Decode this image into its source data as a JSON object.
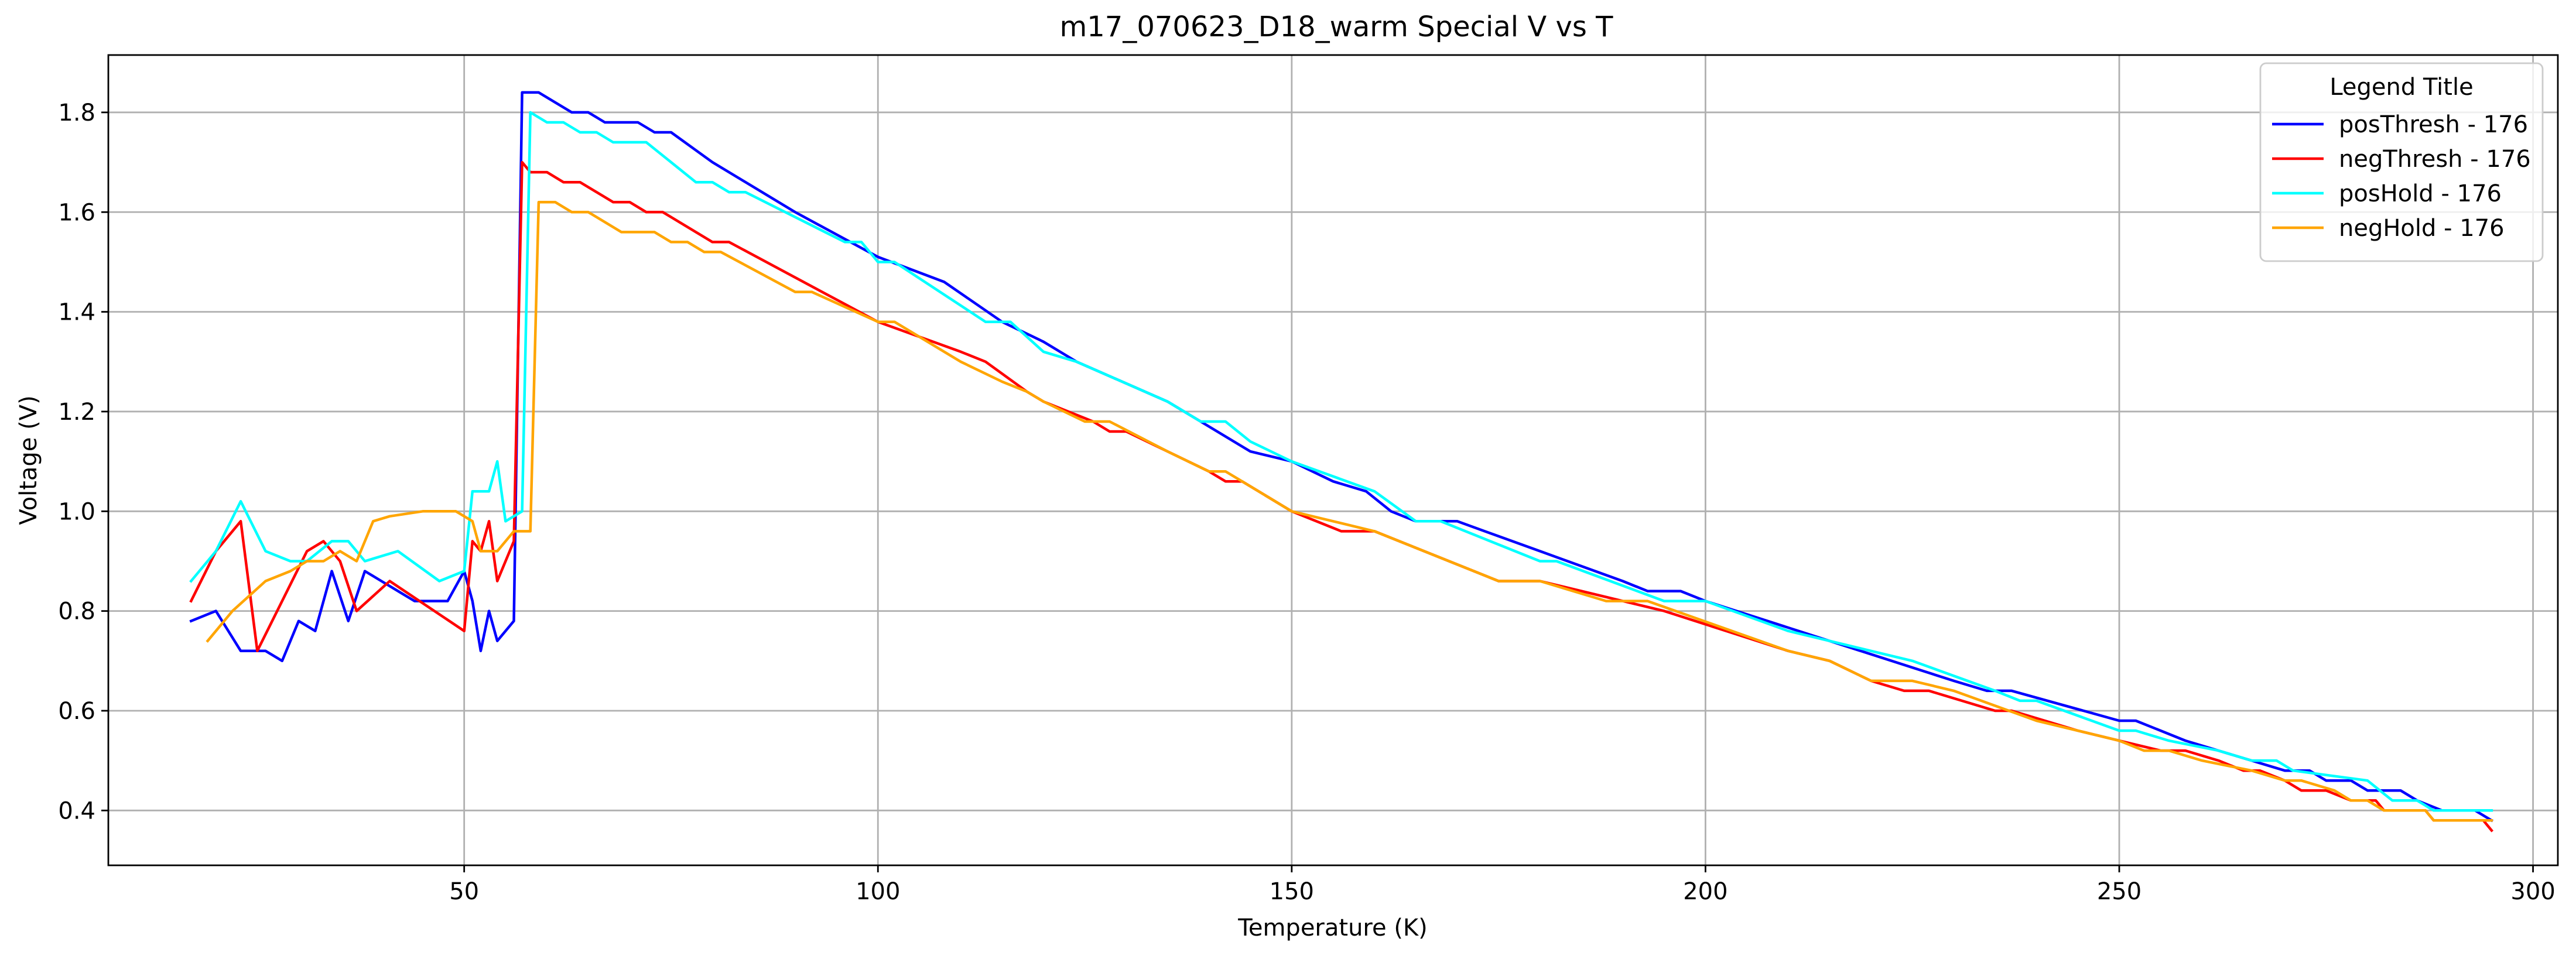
{
  "chart_data": {
    "type": "line",
    "title": "m17_070623_D18_warm Special V vs T",
    "xlabel": "Temperature (K)",
    "ylabel": "Voltage (V)",
    "xlim": [
      7,
      303
    ],
    "ylim": [
      0.29,
      1.915
    ],
    "xticks": [
      50,
      100,
      150,
      200,
      250,
      300
    ],
    "yticks": [
      0.4,
      0.6,
      0.8,
      1.0,
      1.2,
      1.4,
      1.6,
      1.8
    ],
    "grid": true,
    "legend": {
      "title": "Legend Title",
      "position": "top-right",
      "entries": [
        "posThresh - 176",
        "negThresh - 176",
        "posHold - 176",
        "negHold - 176"
      ]
    },
    "series": [
      {
        "name": "posThresh - 176",
        "color": "#0000ff",
        "points": [
          [
            17,
            0.78
          ],
          [
            20,
            0.8
          ],
          [
            23,
            0.72
          ],
          [
            26,
            0.72
          ],
          [
            28,
            0.7
          ],
          [
            30,
            0.78
          ],
          [
            32,
            0.76
          ],
          [
            34,
            0.88
          ],
          [
            36,
            0.78
          ],
          [
            38,
            0.88
          ],
          [
            40,
            0.86
          ],
          [
            42,
            0.84
          ],
          [
            44,
            0.82
          ],
          [
            46,
            0.82
          ],
          [
            48,
            0.82
          ],
          [
            50,
            0.88
          ],
          [
            51,
            0.82
          ],
          [
            52,
            0.72
          ],
          [
            53,
            0.8
          ],
          [
            54,
            0.74
          ],
          [
            56,
            0.78
          ],
          [
            57,
            1.84
          ],
          [
            59,
            1.84
          ],
          [
            61,
            1.82
          ],
          [
            63,
            1.8
          ],
          [
            65,
            1.8
          ],
          [
            67,
            1.78
          ],
          [
            71,
            1.78
          ],
          [
            73,
            1.76
          ],
          [
            75,
            1.76
          ],
          [
            80,
            1.7
          ],
          [
            90,
            1.6
          ],
          [
            100,
            1.51
          ],
          [
            108,
            1.46
          ],
          [
            115,
            1.38
          ],
          [
            120,
            1.34
          ],
          [
            124,
            1.3
          ],
          [
            135,
            1.22
          ],
          [
            145,
            1.12
          ],
          [
            150,
            1.1
          ],
          [
            155,
            1.06
          ],
          [
            159,
            1.04
          ],
          [
            162,
            1.0
          ],
          [
            165,
            0.98
          ],
          [
            170,
            0.98
          ],
          [
            175,
            0.95
          ],
          [
            180,
            0.92
          ],
          [
            190,
            0.86
          ],
          [
            193,
            0.84
          ],
          [
            197,
            0.84
          ],
          [
            200,
            0.82
          ],
          [
            230,
            0.66
          ],
          [
            234,
            0.64
          ],
          [
            237,
            0.64
          ],
          [
            250,
            0.58
          ],
          [
            252,
            0.58
          ],
          [
            258,
            0.54
          ],
          [
            262,
            0.52
          ],
          [
            270,
            0.48
          ],
          [
            273,
            0.48
          ],
          [
            275,
            0.46
          ],
          [
            278,
            0.46
          ],
          [
            280,
            0.44
          ],
          [
            284,
            0.44
          ],
          [
            286,
            0.42
          ],
          [
            289,
            0.4
          ],
          [
            293,
            0.4
          ],
          [
            295,
            0.38
          ]
        ]
      },
      {
        "name": "negThresh - 176",
        "color": "#ff0000",
        "points": [
          [
            17,
            0.82
          ],
          [
            20,
            0.92
          ],
          [
            23,
            0.98
          ],
          [
            25,
            0.72
          ],
          [
            31,
            0.92
          ],
          [
            33,
            0.94
          ],
          [
            35,
            0.9
          ],
          [
            37,
            0.8
          ],
          [
            41,
            0.86
          ],
          [
            50,
            0.76
          ],
          [
            51,
            0.94
          ],
          [
            52,
            0.92
          ],
          [
            53,
            0.98
          ],
          [
            54,
            0.86
          ],
          [
            56,
            0.94
          ],
          [
            57,
            1.7
          ],
          [
            58,
            1.68
          ],
          [
            60,
            1.68
          ],
          [
            62,
            1.66
          ],
          [
            64,
            1.66
          ],
          [
            68,
            1.62
          ],
          [
            70,
            1.62
          ],
          [
            72,
            1.6
          ],
          [
            74,
            1.6
          ],
          [
            80,
            1.54
          ],
          [
            82,
            1.54
          ],
          [
            100,
            1.38
          ],
          [
            110,
            1.32
          ],
          [
            113,
            1.3
          ],
          [
            118,
            1.24
          ],
          [
            120,
            1.22
          ],
          [
            126,
            1.18
          ],
          [
            128,
            1.16
          ],
          [
            130,
            1.16
          ],
          [
            135,
            1.12
          ],
          [
            140,
            1.08
          ],
          [
            142,
            1.06
          ],
          [
            144,
            1.06
          ],
          [
            150,
            1.0
          ],
          [
            156,
            0.96
          ],
          [
            160,
            0.96
          ],
          [
            175,
            0.86
          ],
          [
            180,
            0.86
          ],
          [
            195,
            0.8
          ],
          [
            210,
            0.72
          ],
          [
            215,
            0.7
          ],
          [
            220,
            0.66
          ],
          [
            224,
            0.64
          ],
          [
            227,
            0.64
          ],
          [
            235,
            0.6
          ],
          [
            237,
            0.6
          ],
          [
            245,
            0.56
          ],
          [
            250,
            0.54
          ],
          [
            255,
            0.52
          ],
          [
            258,
            0.52
          ],
          [
            262,
            0.5
          ],
          [
            265,
            0.48
          ],
          [
            267,
            0.48
          ],
          [
            270,
            0.46
          ],
          [
            272,
            0.44
          ],
          [
            275,
            0.44
          ],
          [
            278,
            0.42
          ],
          [
            281,
            0.42
          ],
          [
            282,
            0.4
          ],
          [
            287,
            0.4
          ],
          [
            288,
            0.38
          ],
          [
            294,
            0.38
          ],
          [
            295,
            0.36
          ]
        ]
      },
      {
        "name": "posHold - 176",
        "color": "#00ffff",
        "points": [
          [
            17,
            0.86
          ],
          [
            20,
            0.92
          ],
          [
            23,
            1.02
          ],
          [
            26,
            0.92
          ],
          [
            29,
            0.9
          ],
          [
            31,
            0.9
          ],
          [
            34,
            0.94
          ],
          [
            36,
            0.94
          ],
          [
            38,
            0.9
          ],
          [
            42,
            0.92
          ],
          [
            47,
            0.86
          ],
          [
            50,
            0.88
          ],
          [
            51,
            1.04
          ],
          [
            53,
            1.04
          ],
          [
            54,
            1.1
          ],
          [
            55,
            0.98
          ],
          [
            57,
            1.0
          ],
          [
            58,
            1.8
          ],
          [
            60,
            1.78
          ],
          [
            62,
            1.78
          ],
          [
            64,
            1.76
          ],
          [
            66,
            1.76
          ],
          [
            68,
            1.74
          ],
          [
            72,
            1.74
          ],
          [
            78,
            1.66
          ],
          [
            80,
            1.66
          ],
          [
            82,
            1.64
          ],
          [
            84,
            1.64
          ],
          [
            96,
            1.54
          ],
          [
            98,
            1.54
          ],
          [
            100,
            1.5
          ],
          [
            102,
            1.5
          ],
          [
            113,
            1.38
          ],
          [
            116,
            1.38
          ],
          [
            120,
            1.32
          ],
          [
            124,
            1.3
          ],
          [
            135,
            1.22
          ],
          [
            139,
            1.18
          ],
          [
            142,
            1.18
          ],
          [
            145,
            1.14
          ],
          [
            150,
            1.1
          ],
          [
            160,
            1.04
          ],
          [
            165,
            0.98
          ],
          [
            168,
            0.98
          ],
          [
            180,
            0.9
          ],
          [
            182,
            0.9
          ],
          [
            195,
            0.82
          ],
          [
            200,
            0.82
          ],
          [
            210,
            0.76
          ],
          [
            220,
            0.72
          ],
          [
            225,
            0.7
          ],
          [
            235,
            0.64
          ],
          [
            238,
            0.62
          ],
          [
            240,
            0.62
          ],
          [
            250,
            0.56
          ],
          [
            252,
            0.56
          ],
          [
            256,
            0.54
          ],
          [
            262,
            0.52
          ],
          [
            266,
            0.5
          ],
          [
            269,
            0.5
          ],
          [
            271,
            0.48
          ],
          [
            280,
            0.46
          ],
          [
            283,
            0.42
          ],
          [
            286,
            0.42
          ],
          [
            288,
            0.4
          ],
          [
            295,
            0.4
          ]
        ]
      },
      {
        "name": "negHold - 176",
        "color": "#ffa500",
        "points": [
          [
            19,
            0.74
          ],
          [
            22,
            0.8
          ],
          [
            26,
            0.86
          ],
          [
            29,
            0.88
          ],
          [
            31,
            0.9
          ],
          [
            33,
            0.9
          ],
          [
            35,
            0.92
          ],
          [
            37,
            0.9
          ],
          [
            39,
            0.98
          ],
          [
            41,
            0.99
          ],
          [
            45,
            1.0
          ],
          [
            49,
            1.0
          ],
          [
            51,
            0.98
          ],
          [
            52,
            0.92
          ],
          [
            54,
            0.92
          ],
          [
            56,
            0.96
          ],
          [
            58,
            0.96
          ],
          [
            59,
            1.62
          ],
          [
            61,
            1.62
          ],
          [
            63,
            1.6
          ],
          [
            65,
            1.6
          ],
          [
            69,
            1.56
          ],
          [
            73,
            1.56
          ],
          [
            75,
            1.54
          ],
          [
            77,
            1.54
          ],
          [
            79,
            1.52
          ],
          [
            81,
            1.52
          ],
          [
            90,
            1.44
          ],
          [
            92,
            1.44
          ],
          [
            100,
            1.38
          ],
          [
            102,
            1.38
          ],
          [
            110,
            1.3
          ],
          [
            115,
            1.26
          ],
          [
            118,
            1.24
          ],
          [
            120,
            1.22
          ],
          [
            125,
            1.18
          ],
          [
            128,
            1.18
          ],
          [
            135,
            1.12
          ],
          [
            140,
            1.08
          ],
          [
            142,
            1.08
          ],
          [
            144,
            1.06
          ],
          [
            150,
            1.0
          ],
          [
            155,
            0.98
          ],
          [
            160,
            0.96
          ],
          [
            175,
            0.86
          ],
          [
            180,
            0.86
          ],
          [
            188,
            0.82
          ],
          [
            193,
            0.82
          ],
          [
            210,
            0.72
          ],
          [
            215,
            0.7
          ],
          [
            220,
            0.66
          ],
          [
            225,
            0.66
          ],
          [
            230,
            0.64
          ],
          [
            240,
            0.58
          ],
          [
            245,
            0.56
          ],
          [
            250,
            0.54
          ],
          [
            253,
            0.52
          ],
          [
            256,
            0.52
          ],
          [
            260,
            0.5
          ],
          [
            266,
            0.48
          ],
          [
            270,
            0.46
          ],
          [
            272,
            0.46
          ],
          [
            276,
            0.44
          ],
          [
            278,
            0.42
          ],
          [
            280,
            0.42
          ],
          [
            282,
            0.4
          ],
          [
            287,
            0.4
          ],
          [
            288,
            0.38
          ],
          [
            295,
            0.38
          ]
        ]
      }
    ]
  }
}
